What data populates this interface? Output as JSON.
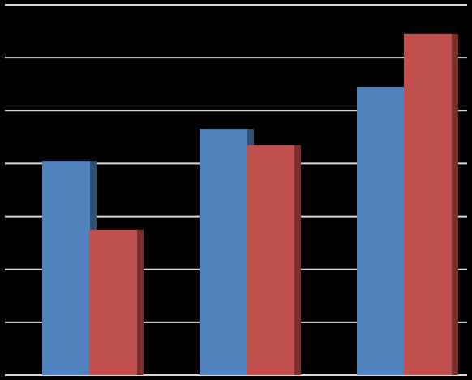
{
  "chart_data": {
    "type": "bar",
    "categories": [
      null,
      null,
      null
    ],
    "series": [
      {
        "color": "#4f81bd",
        "values": [
          4.05,
          4.65,
          5.45
        ]
      },
      {
        "color": "#c0504d",
        "values": [
          2.75,
          4.35,
          6.45
        ]
      }
    ],
    "ylim": [
      0,
      7
    ],
    "yticks": [
      0,
      1,
      2,
      3,
      4,
      5,
      6,
      7
    ],
    "grid": true
  }
}
